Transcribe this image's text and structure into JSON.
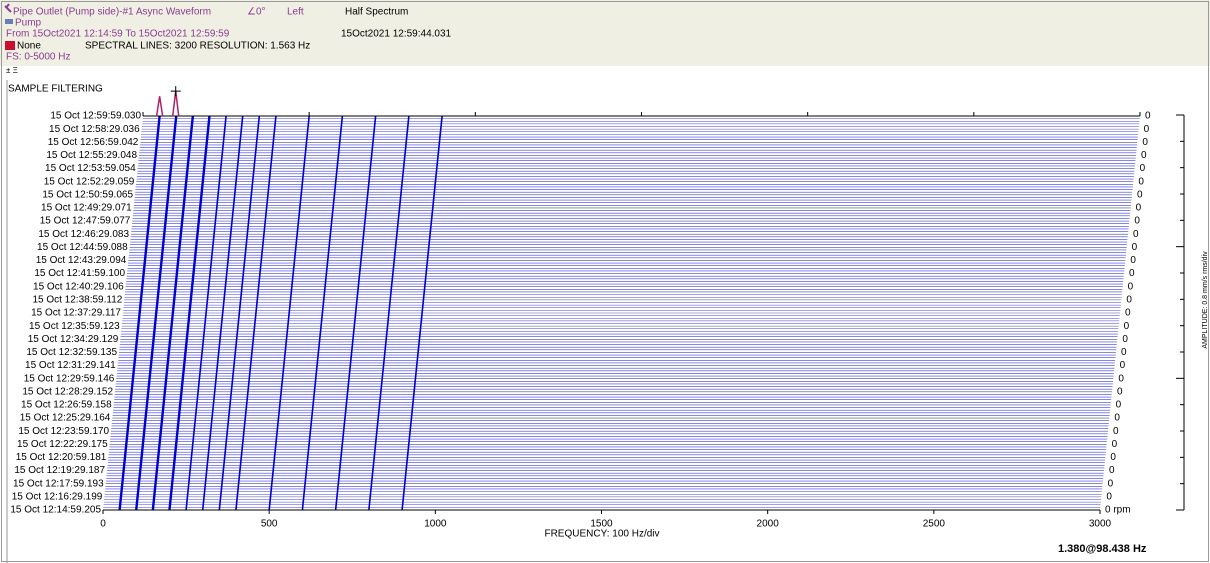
{
  "header": {
    "source": "Pipe Outlet (Pump side)-#1 Async Waveform",
    "angle": "∠0°",
    "side": "Left",
    "mode": "Half Spectrum",
    "machine": "Pump",
    "range": "From 15Oct2021 12:14:59 To 15Oct2021 12:59:59",
    "timestamp": "15Oct2021 12:59:44.031",
    "window": "None",
    "settings": "SPECTRAL LINES: 3200  RESOLUTION: 1.563 Hz",
    "fs": "FS: 0-5000 Hz"
  },
  "chart_data": {
    "type": "waterfall",
    "title": "SAMPLE FILTERING",
    "x_label": "FREQUENCY: 100 Hz/div",
    "y2_label": "AMPLITUDE: 0.8 mm/s rms/div",
    "xlim": [
      0,
      3000
    ],
    "xticks": [
      0,
      500,
      1000,
      1500,
      2000,
      2500,
      3000
    ],
    "categories": [
      "15 Oct 12:59:59.030",
      "15 Oct 12:58:29.036",
      "15 Oct 12:56:59.042",
      "15 Oct 12:55:29.048",
      "15 Oct 12:53:59.054",
      "15 Oct 12:52:29.059",
      "15 Oct 12:50:59.065",
      "15 Oct 12:49:29.071",
      "15 Oct 12:47:59.077",
      "15 Oct 12:46:29.083",
      "15 Oct 12:44:59.088",
      "15 Oct 12:43:29.094",
      "15 Oct 12:41:59.100",
      "15 Oct 12:40:29.106",
      "15 Oct 12:38:59.112",
      "15 Oct 12:37:29.117",
      "15 Oct 12:35:59.123",
      "15 Oct 12:34:29.129",
      "15 Oct 12:32:59.135",
      "15 Oct 12:31:29.141",
      "15 Oct 12:29:59.146",
      "15 Oct 12:28:29.152",
      "15 Oct 12:26:59.158",
      "15 Oct 12:25:29.164",
      "15 Oct 12:23:59.170",
      "15 Oct 12:22:29.175",
      "15 Oct 12:20:59.181",
      "15 Oct 12:19:29.187",
      "15 Oct 12:17:59.193",
      "15 Oct 12:16:29.199",
      "15 Oct 12:14:59.205"
    ],
    "speed": {
      "values": [
        0,
        0,
        0,
        0,
        0,
        0,
        0,
        0,
        0,
        0,
        0,
        0,
        0,
        0,
        0,
        0,
        0,
        0,
        0,
        0,
        0,
        0,
        0,
        0,
        0,
        0,
        0,
        0,
        0,
        0,
        0
      ],
      "value_labels": [
        "0",
        "0",
        "0",
        "0",
        "0",
        "0",
        "0",
        "0",
        "0",
        "0",
        "0",
        "0",
        "0",
        "0",
        "0",
        "0",
        "0",
        "0",
        "0",
        "0",
        "0",
        "0",
        "0",
        "0",
        "0",
        "0",
        "0",
        "0",
        "0",
        "0",
        "0 rpm"
      ]
    },
    "harmonic_frequencies": [
      50,
      100,
      150,
      200,
      250,
      300,
      350,
      400,
      500,
      600,
      700,
      800,
      900
    ],
    "top_trace": {
      "frequency": [
        50,
        98.438
      ],
      "amplitude": [
        1.1,
        1.38
      ],
      "color": "#b0206a"
    },
    "cursor": {
      "frequency": 98.438,
      "amplitude": 1.38,
      "label": "1.380@98.438 Hz"
    },
    "trace_color": "#1a1ae6"
  }
}
